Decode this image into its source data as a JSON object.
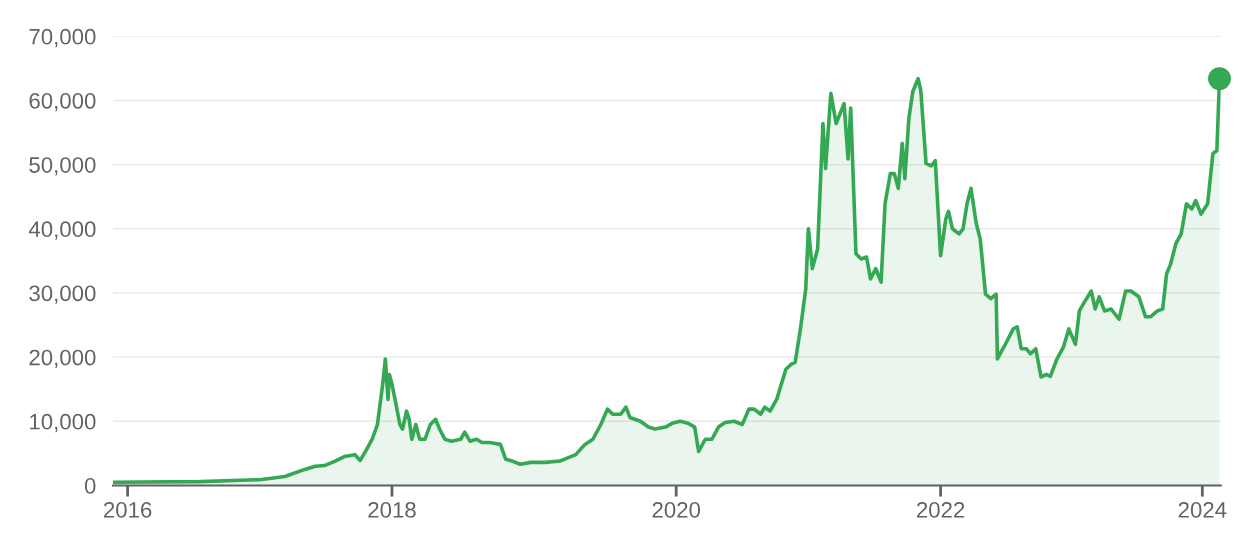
{
  "chart_data": {
    "type": "area",
    "xlim": [
      2015.89,
      2024.27
    ],
    "ylim": [
      0,
      70000
    ],
    "xticks": [
      {
        "value": 2016.0,
        "label": "2016"
      },
      {
        "value": 2018.0,
        "label": "2018"
      },
      {
        "value": 2020.15,
        "label": "2020"
      },
      {
        "value": 2022.15,
        "label": "2022"
      },
      {
        "value": 2024.13,
        "label": "2024"
      }
    ],
    "yticks": [
      0,
      {
        "value": 10000,
        "label": "10,000"
      },
      {
        "value": 20000,
        "label": "20,000"
      },
      {
        "value": 30000,
        "label": "30,000"
      },
      {
        "value": 40000,
        "label": "40,000"
      },
      {
        "value": 50000,
        "label": "50,000"
      },
      {
        "value": 60000,
        "label": "60,000"
      },
      {
        "value": 70000,
        "label": "70,000"
      }
    ],
    "grid": "y",
    "legend": false,
    "series": [
      {
        "color": "#34a853",
        "marker": "none",
        "line_style": "solid",
        "x": [
          2015.89,
          2016.55,
          2017.0,
          2017.19,
          2017.34,
          2017.42,
          2017.49,
          2017.57,
          2017.64,
          2017.72,
          2017.76,
          2017.8,
          2017.85,
          2017.89,
          2017.93,
          2017.95,
          2017.97,
          2017.98,
          2018.0,
          2018.03,
          2018.06,
          2018.08,
          2018.11,
          2018.13,
          2018.15,
          2018.18,
          2018.21,
          2018.25,
          2018.29,
          2018.33,
          2018.36,
          2018.4,
          2018.45,
          2018.52,
          2018.55,
          2018.59,
          2018.64,
          2018.68,
          2018.74,
          2018.82,
          2018.86,
          2018.91,
          2018.97,
          2019.05,
          2019.16,
          2019.27,
          2019.39,
          2019.46,
          2019.52,
          2019.58,
          2019.63,
          2019.67,
          2019.73,
          2019.77,
          2019.8,
          2019.88,
          2019.94,
          2019.99,
          2020.07,
          2020.12,
          2020.18,
          2020.24,
          2020.29,
          2020.32,
          2020.37,
          2020.42,
          2020.47,
          2020.52,
          2020.59,
          2020.65,
          2020.7,
          2020.74,
          2020.79,
          2020.82,
          2020.86,
          2020.91,
          2020.98,
          2021.02,
          2021.05,
          2021.09,
          2021.13,
          2021.15,
          2021.18,
          2021.22,
          2021.26,
          2021.28,
          2021.32,
          2021.36,
          2021.42,
          2021.45,
          2021.47,
          2021.51,
          2021.55,
          2021.59,
          2021.62,
          2021.66,
          2021.7,
          2021.73,
          2021.77,
          2021.8,
          2021.83,
          2021.86,
          2021.88,
          2021.91,
          2021.94,
          2021.98,
          2022.0,
          2022.04,
          2022.08,
          2022.11,
          2022.15,
          2022.19,
          2022.21,
          2022.24,
          2022.29,
          2022.32,
          2022.35,
          2022.38,
          2022.42,
          2022.45,
          2022.49,
          2022.53,
          2022.57,
          2022.58,
          2022.61,
          2022.64,
          2022.7,
          2022.73,
          2022.76,
          2022.8,
          2022.83,
          2022.87,
          2022.91,
          2022.95,
          2022.98,
          2023.03,
          2023.08,
          2023.12,
          2023.17,
          2023.2,
          2023.23,
          2023.29,
          2023.32,
          2023.35,
          2023.39,
          2023.44,
          2023.5,
          2023.55,
          2023.59,
          2023.65,
          2023.7,
          2023.74,
          2023.79,
          2023.83,
          2023.86,
          2023.89,
          2023.93,
          2023.97,
          2024.01,
          2024.05,
          2024.08,
          2024.12,
          2024.17,
          2024.21,
          2024.24,
          2024.26
        ],
        "values": [
          500,
          600,
          900,
          1400,
          2500,
          3000,
          3100,
          3800,
          4500,
          4800,
          3900,
          5300,
          7200,
          9500,
          15800,
          19700,
          13400,
          17300,
          15800,
          12700,
          9500,
          8800,
          11600,
          10300,
          7200,
          9500,
          7200,
          7200,
          9500,
          10300,
          8800,
          7200,
          6900,
          7200,
          8300,
          6900,
          7200,
          6700,
          6700,
          6400,
          4100,
          3800,
          3300,
          3600,
          3600,
          3800,
          4800,
          6400,
          7200,
          9500,
          11900,
          11100,
          11100,
          12200,
          10600,
          10000,
          9100,
          8800,
          9100,
          9700,
          10000,
          9700,
          9100,
          5300,
          7200,
          7200,
          9100,
          9800,
          10000,
          9500,
          11900,
          11900,
          11100,
          12200,
          11600,
          13400,
          18100,
          18900,
          19200,
          24400,
          30600,
          40000,
          33800,
          36900,
          56400,
          49400,
          61100,
          56400,
          59500,
          50900,
          58800,
          36100,
          35300,
          35600,
          32200,
          33800,
          31700,
          43900,
          48600,
          48600,
          46300,
          53300,
          47800,
          57200,
          61400,
          63400,
          61600,
          50200,
          49800,
          50600,
          35800,
          41600,
          42700,
          40000,
          39200,
          40000,
          43900,
          46300,
          40800,
          38400,
          29800,
          29100,
          29800,
          19700,
          20900,
          22000,
          24400,
          24700,
          21300,
          21300,
          20500,
          21300,
          16900,
          17300,
          17000,
          19700,
          21600,
          24400,
          22000,
          27200,
          28300,
          30300,
          27500,
          29400,
          27200,
          27500,
          25900,
          30300,
          30300,
          29400,
          26300,
          26300,
          27200,
          27500,
          33000,
          34500,
          37700,
          39200,
          43900,
          43100,
          44400,
          42300,
          43900,
          51700,
          52200,
          63400
        ]
      },
      {
        "type": "scatter",
        "color": "#34a853",
        "marker": "circle",
        "x": [
          2024.26
        ],
        "values": [
          63400
        ]
      }
    ]
  }
}
